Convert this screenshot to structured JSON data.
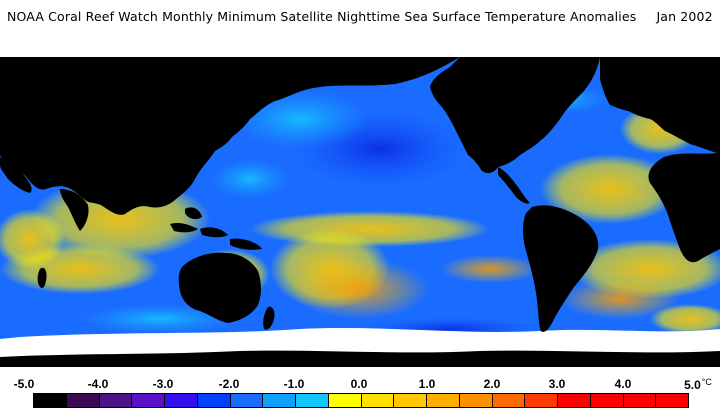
{
  "title": {
    "main": "NOAA Coral Reef Watch Monthly Minimum Satellite Nighttime Sea Surface Temperature Anomalies",
    "date": "Jan 2002"
  },
  "legend": {
    "ticks": [
      "-5.0",
      "-4.0",
      "-3.0",
      "-2.0",
      "-1.0",
      "0.0",
      "1.0",
      "2.0",
      "3.0",
      "4.0",
      "5.0"
    ],
    "unit": "°C",
    "colors": [
      "#000000",
      "#3a0a55",
      "#4a1487",
      "#5a10c8",
      "#3010f0",
      "#0040ff",
      "#1a6cff",
      "#10a0ff",
      "#10c8ff",
      "#ffff00",
      "#ffe000",
      "#ffc800",
      "#ffae00",
      "#ff9000",
      "#ff6a00",
      "#ff3a00",
      "#ff0000",
      "#ff0000",
      "#ff0000",
      "#ff0000"
    ]
  }
}
